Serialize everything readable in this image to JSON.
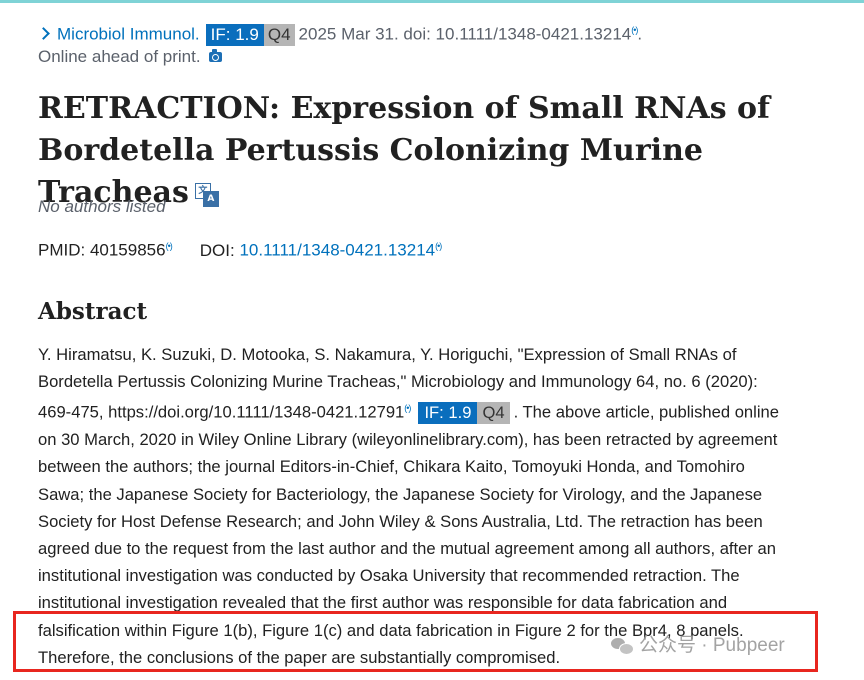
{
  "citation": {
    "journal": "Microbiol Immunol.",
    "if_badge": "IF: 1.9",
    "quartile_badge": "Q4",
    "date_doi": "2025 Mar 31. doi: 10.1111/1348-0421.13214",
    "trailing": ".",
    "status": "Online ahead of print."
  },
  "article": {
    "title": "RETRACTION: Expression of Small RNAs of Bordetella Pertussis Colonizing Murine Tracheas",
    "authors": "No authors listed",
    "pmid_label": "PMID: 40159856",
    "doi_label": "DOI:",
    "doi_value": "10.1111/1348-0421.13214"
  },
  "abstract": {
    "heading": "Abstract",
    "lines": [
      "Y. Hiramatsu, K. Suzuki, D. Motooka, S. Nakamura, Y. Horiguchi, \"Expression of Small RNAs of",
      "Bordetella Pertussis Colonizing Murine Tracheas,\" Microbiology and Immunology 64, no. 6 (2020):",
      "469-475, https://doi.org/10.1111/1348-0421.12791",
      "on 30 March, 2020 in Wiley Online Library (wileyonlinelibrary.com), has been retracted by agreement",
      "between the authors; the journal Editors-in-Chief, Chikara Kaito, Tomoyuki Honda, and Tomohiro",
      "Sawa; the Japanese Society for Bacteriology, the Japanese Society for Virology, and the Japanese",
      "Society for Host Defense Research; and John Wiley & Sons Australia, Ltd. The retraction has been",
      "agreed due to the request from the last author and the mutual agreement among all authors, after an",
      "institutional investigation was conducted by Osaka University that recommended retraction. The",
      "institutional investigation revealed that the first author was responsible for data fabrication and",
      "falsification within Figure 1(b), Figure 1(c) and data fabrication in Figure 2 for the Bpr4, 8 panels.",
      "Therefore, the conclusions of the paper are substantially compromised."
    ],
    "inline_if_badge": "IF: 1.9",
    "inline_quartile_badge": "Q4",
    "line3_tail": ". The above article, published online"
  },
  "watermark": {
    "text": "公众号 · Pubpeer"
  },
  "colors": {
    "link": "#0071bc",
    "if_badge": "#0a6ebd",
    "quartile_badge": "#b5b5b5",
    "highlight_box": "#e8261f"
  }
}
